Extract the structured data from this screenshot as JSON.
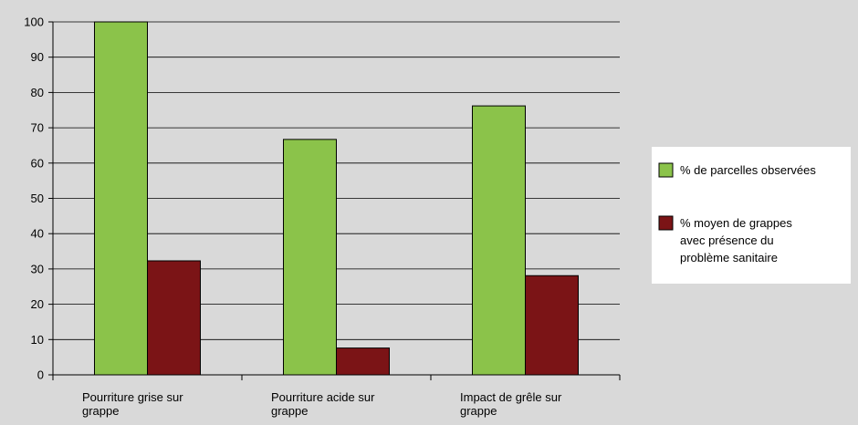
{
  "chart_data": {
    "type": "bar",
    "categories": [
      [
        "Pourriture grise sur",
        "grappe"
      ],
      [
        "Pourriture acide sur",
        "grappe"
      ],
      [
        "Impact de grêle sur",
        "grappe"
      ]
    ],
    "series": [
      {
        "name": "% de parcelles observées",
        "values": [
          100,
          66.7,
          76.2
        ],
        "color": "#8bc34a"
      },
      {
        "name": [
          "% moyen de grappes",
          "avec présence du",
          "problème sanitaire"
        ],
        "values": [
          32.3,
          7.6,
          28.1
        ],
        "color": "#7b1416"
      }
    ],
    "ylim": [
      0,
      100
    ],
    "yticks": [
      0,
      10,
      20,
      30,
      40,
      50,
      60,
      70,
      80,
      90,
      100
    ],
    "grid": true,
    "legend": "right"
  },
  "colors": {
    "background": "#d9d9d9",
    "plot_area": "#d9d9d9",
    "gridline": "#000000",
    "legend_background": "#ffffff"
  }
}
